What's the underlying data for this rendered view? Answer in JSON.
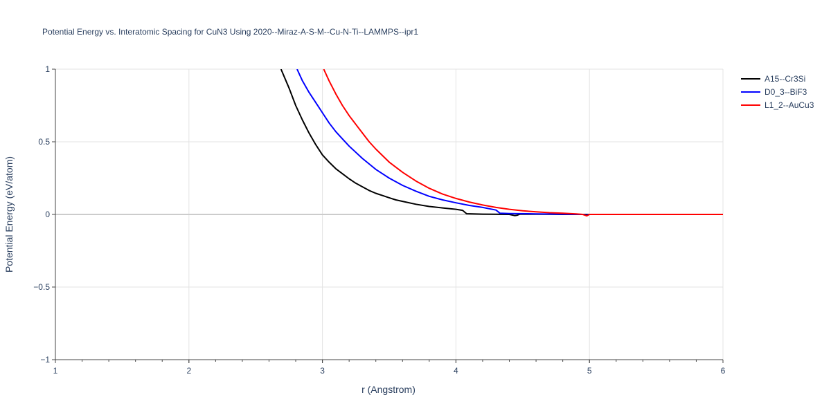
{
  "chart_data": {
    "type": "line",
    "title": "Potential Energy vs. Interatomic Spacing for CuN3 Using 2020--Miraz-A-S-M--Cu-N-Ti--LAMMPS--ipr1",
    "xlabel": "r (Angstrom)",
    "ylabel": "Potential Energy (eV/atom)",
    "xlim": [
      1,
      6
    ],
    "ylim": [
      -1,
      1
    ],
    "x_ticks": [
      1,
      2,
      3,
      4,
      5,
      6
    ],
    "x_tick_labels": [
      "1",
      "2",
      "3",
      "4",
      "5",
      "6"
    ],
    "y_ticks": [
      -1,
      -0.5,
      0,
      0.5,
      1
    ],
    "y_tick_labels": [
      "−1",
      "−0.5",
      "0",
      "0.5",
      "1"
    ],
    "grid": true,
    "legend_position": "top-right",
    "series": [
      {
        "name": "A15--Cr3Si",
        "color": "#000000",
        "x": [
          2.69,
          2.75,
          2.8,
          2.85,
          2.9,
          2.95,
          3.0,
          3.05,
          3.1,
          3.15,
          3.2,
          3.25,
          3.3,
          3.35,
          3.4,
          3.45,
          3.5,
          3.55,
          3.6,
          3.7,
          3.8,
          3.9,
          4.0,
          4.05,
          4.08,
          4.15,
          4.2,
          4.3,
          4.4,
          4.44,
          4.46,
          4.48,
          4.6,
          4.7,
          4.8,
          5.0,
          5.2,
          5.5,
          6.0
        ],
        "y": [
          1.0,
          0.87,
          0.75,
          0.65,
          0.56,
          0.48,
          0.41,
          0.36,
          0.315,
          0.28,
          0.245,
          0.215,
          0.19,
          0.165,
          0.145,
          0.13,
          0.115,
          0.1,
          0.09,
          0.07,
          0.055,
          0.045,
          0.035,
          0.028,
          0.005,
          0.003,
          0.002,
          0.001,
          0.0,
          -0.008,
          -0.005,
          0.002,
          0.002,
          0.001,
          0.0,
          0.0,
          0.0,
          0.0,
          0.0
        ]
      },
      {
        "name": "D0_3--BiF3",
        "color": "#0000ff",
        "x": [
          2.81,
          2.85,
          2.9,
          2.95,
          3.0,
          3.05,
          3.1,
          3.15,
          3.2,
          3.3,
          3.4,
          3.5,
          3.6,
          3.7,
          3.8,
          3.9,
          4.0,
          4.1,
          4.2,
          4.3,
          4.33,
          4.4,
          4.6,
          4.8,
          4.95,
          4.98,
          5.0,
          5.2,
          5.5,
          6.0
        ],
        "y": [
          1.0,
          0.92,
          0.84,
          0.77,
          0.7,
          0.63,
          0.57,
          0.52,
          0.47,
          0.385,
          0.31,
          0.25,
          0.2,
          0.16,
          0.125,
          0.1,
          0.08,
          0.062,
          0.048,
          0.03,
          0.008,
          0.006,
          0.004,
          0.002,
          0.0,
          -0.005,
          0.0,
          0.0,
          0.0,
          0.0
        ]
      },
      {
        "name": "L1_2--AuCu3",
        "color": "#ff0000",
        "x": [
          3.01,
          3.05,
          3.1,
          3.15,
          3.2,
          3.25,
          3.3,
          3.35,
          3.4,
          3.5,
          3.6,
          3.7,
          3.8,
          3.9,
          4.0,
          4.1,
          4.2,
          4.3,
          4.4,
          4.5,
          4.6,
          4.7,
          4.8,
          4.9,
          4.95,
          4.98,
          5.0,
          5.1,
          5.5,
          6.0
        ],
        "y": [
          1.0,
          0.92,
          0.83,
          0.75,
          0.68,
          0.62,
          0.56,
          0.5,
          0.45,
          0.36,
          0.29,
          0.23,
          0.18,
          0.14,
          0.11,
          0.085,
          0.065,
          0.048,
          0.035,
          0.025,
          0.018,
          0.012,
          0.008,
          0.004,
          0.0,
          -0.01,
          0.0,
          0.0,
          0.0,
          0.0
        ]
      }
    ]
  }
}
